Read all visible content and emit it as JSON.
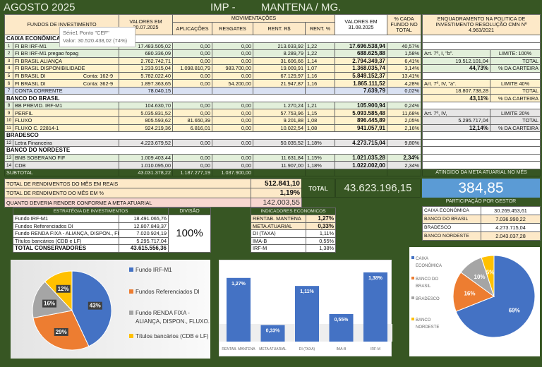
{
  "header": {
    "month": "AGOSTO 2025",
    "imp": "IMP -",
    "city": "MANTENA / MG."
  },
  "table": {
    "headers": {
      "funds": "FUNDOS DE INVESTIMENTO",
      "prev_values": "VALORES EM 30.07.2025",
      "movements": "MOVIMENTAÇÕES",
      "applications": "APLICAÇÕES",
      "redemptions": "RESGATES",
      "rent_rs": "RENT. R$",
      "rent_pct": "RENT. %",
      "curr_values": "VALORES EM 31.08.2025",
      "fund_pct": "% CADA FUNDO NO TOTAL",
      "framework": "ENQUADRAMENTO NA POLITICA DE INVESTIMENTO RESOLUÇÃO CMN Nº 4.963/2021"
    },
    "rows": [
      {
        "type": "section",
        "name": "CAIXA ECONÔMICA"
      },
      {
        "num": "1",
        "name": "FI BR IRF-M1",
        "prev": "17.483.505,02",
        "app": "0,00",
        "red": "0,00",
        "rs": "213.033,92",
        "pct": "1,22",
        "curr": "17.696.538,94",
        "share": "40,57%",
        "tone": "green"
      },
      {
        "num": "2",
        "name": "FI BR IRF-M1 pregao fopag",
        "prev": "680.336,09",
        "app": "0,00",
        "red": "0,00",
        "rs": "8.289,79",
        "pct": "1,22",
        "curr": "688.625,88",
        "share": "1,58%",
        "tone": "green",
        "right": [
          "Art. 7º, I, \"b\".",
          "LIMITE: 100%"
        ],
        "rtone": "green"
      },
      {
        "num": "3",
        "name": "FI BRASIL ALIANÇA",
        "prev": "2.762.742,71",
        "app": "0,00",
        "red": "0,00",
        "rs": "31.606,66",
        "pct": "1,14",
        "curr": "2.794.349,37",
        "share": "6,41%",
        "tone": "yellow",
        "right": [
          "19.512.101,04",
          "TOTAL"
        ],
        "rtone": "green"
      },
      {
        "num": "4",
        "name": "FI BRASIL DISPONIBILIDADE",
        "prev": "1.233.915,04",
        "app": "1.098.810,79",
        "red": "983.700,00",
        "rs": "19.009,91",
        "pct": "1,07",
        "curr": "1.368.035,74",
        "share": "3,14%",
        "tone": "yellow",
        "right": [
          "44,73%",
          "% DA CARTEIRA"
        ],
        "rtone": "green",
        "rbold": true
      },
      {
        "num": "5",
        "name": "FI BRASIL DI",
        "account": "Conta: 162-9",
        "prev": "5.782.022,40",
        "app": "0,00",
        "red": "0,00",
        "rs": "67.129,97",
        "pct": "1,16",
        "curr": "5.849.152,37",
        "share": "13,41%",
        "tone": "yellow"
      },
      {
        "num": "6",
        "name": "FI BRASIL DI",
        "account": "Conta: 362-9",
        "prev": "1.897.363,65",
        "app": "0,00",
        "red": "54.200,00",
        "rs": "21.947,87",
        "pct": "1,16",
        "curr": "1.865.111,52",
        "share": "4,28%",
        "tone": "yellow",
        "right": [
          "Art. 7º, IV, \"a\".",
          "LIMITE 40%"
        ],
        "rtone": "yellow"
      },
      {
        "num": "7",
        "name": "CONTA CORRENTE",
        "prev": "78.040,15",
        "app": "",
        "red": "",
        "rs": "",
        "pct": "",
        "curr": "7.639,79",
        "share": "0,02%",
        "tone": "blue",
        "right": [
          "18.807.738,28",
          "TOTAL"
        ],
        "rtone": "yellow"
      },
      {
        "type": "section",
        "name": "BANCO DO BRASIL",
        "right": [
          "43,11%",
          "% DA CARTEIRA"
        ],
        "rtone": "yellow",
        "rbold": true
      },
      {
        "num": "8",
        "name": "BB PREVID. IRF-M1",
        "prev": "104.630,70",
        "app": "0,00",
        "red": "0,00",
        "rs": "1.270,24",
        "pct": "1,21",
        "curr": "105.900,94",
        "share": "0,24%",
        "tone": "green"
      },
      {
        "num": "9",
        "name": "PERFIL",
        "prev": "5.035.831,52",
        "app": "0,00",
        "red": "0,00",
        "rs": "57.753,96",
        "pct": "1,15",
        "curr": "5.093.585,48",
        "share": "11,68%",
        "tone": "yellow",
        "right": [
          "Art. 7º, IV,",
          "LIMITE 20%"
        ],
        "rtone": "gray"
      },
      {
        "num": "10",
        "name": "FLUXO",
        "prev": "805.593,62",
        "app": "81.650,39",
        "red": "0,00",
        "rs": "9.201,88",
        "pct": "1,08",
        "curr": "896.445,89",
        "share": "2,05%",
        "tone": "yellow",
        "right": [
          "5.295.717,04",
          "TOTAL"
        ],
        "rtone": "gray"
      },
      {
        "num": "11",
        "name": "FLUXO  C. 22814-1",
        "prev": "924.219,36",
        "app": "6.816,01",
        "red": "0,00",
        "rs": "10.022,54",
        "pct": "1,08",
        "curr": "941.057,91",
        "share": "2,16%",
        "tone": "yellow",
        "right": [
          "12,14%",
          "% DA CARTEIRA"
        ],
        "rtone": "gray",
        "rbold": true
      },
      {
        "type": "section",
        "name": "BRADESCO"
      },
      {
        "num": "12",
        "name": "Letra Financeira",
        "prev": "4.223.679,52",
        "app": "0,00",
        "red": "0,00",
        "rs": "50.035,52",
        "pct": "1,18%",
        "curr": "4.273.715,04",
        "share": "9,80%",
        "tone": "gray"
      },
      {
        "type": "section",
        "name": "BANCO DO NORDESTE"
      },
      {
        "num": "13",
        "name": "BNB SOBERANO FIF",
        "prev": "1.009.403,44",
        "app": "0,00",
        "red": "0,00",
        "rs": "11.631,84",
        "pct": "1,15%",
        "curr": "1.021.035,28",
        "share": "2,34%",
        "tone": "green",
        "sharebold": true
      },
      {
        "num": "14",
        "name": "CDB",
        "prev": "1.010.095,00",
        "app": "0,00",
        "red": "0,00",
        "rs": "11.907,00",
        "pct": "1,18%",
        "curr": "1.022.002,00",
        "share": "2,34%",
        "tone": "gray"
      }
    ],
    "subtotal": {
      "label": "SUBTOTAL",
      "prev": "43.031.378,22",
      "app": "1.187.277,19",
      "red": "1.037.900,00"
    }
  },
  "tooltip": {
    "series": "Série1 Ponto \"CEF\"",
    "value": "Valor: 30.520.438,02 (74%)"
  },
  "totals": {
    "month_income_label": "TOTAL DE RENDIMENTOS DO MÊS EM REAIS",
    "month_income": "512.841,10",
    "month_pct_label": "TOTAL DE RENDIMENTO DO MÊS EM %",
    "month_pct": "1,19%",
    "target_label": "QUANTO DEVERIA RENDER CONFORME A META ATUARIAL",
    "target": "142.003,55",
    "total_label": "TOTAL",
    "total": "43.623.196,15"
  },
  "goal": {
    "label": "ATINGIDO DA META ATUARIAL NO MÊS",
    "value": "384,85"
  },
  "managers": {
    "title": "PARTICIPAÇÃO POR GESTOR",
    "rows": [
      {
        "name": "CAIXA ECONÔMICA",
        "value": "30.269.453,61"
      },
      {
        "name": "BANCO DO BRASIL",
        "value": "7.036.990,22"
      },
      {
        "name": "BRADESCO",
        "value": "4.273.715,04"
      },
      {
        "name": "BANCO NORDESTE",
        "value": "2.043.037,28"
      }
    ]
  },
  "strategy": {
    "title": "ESTRATÉGIA DE INVESTIMENTOS",
    "division_label": "DIVISÃO",
    "division": "100%",
    "rows": [
      {
        "name": "Fundo IRF-M1",
        "value": "18.491.065,76"
      },
      {
        "name": "Fundos Referenciados DI",
        "value": "12.807.849,37"
      },
      {
        "name": "Fundo RENDA FIXA -  ALIANÇA, DISPON., FLUXO.",
        "value": "7.020.924,19"
      },
      {
        "name": "Títulos bancários (CDB e LF)",
        "value": "5.295.717,04"
      }
    ],
    "total_label": "TOTAL CONSERVADORES",
    "total": "43.615.556,36"
  },
  "indicators": {
    "title": "INDICADORES ECONOMICOS",
    "rows": [
      {
        "name": "RENTAB.  MANTENA",
        "value": "1,27%",
        "hl": true
      },
      {
        "name": "META ATUARIAL",
        "value": "0,33%",
        "hl": true
      },
      {
        "name": "DI (TAXA)",
        "value": "1,11%"
      },
      {
        "name": "IMA-B",
        "value": "0,55%"
      },
      {
        "name": "IRF-M",
        "value": "1,38%"
      }
    ]
  },
  "chart_data": [
    {
      "type": "pie",
      "categories": [
        "Fundo IRF-M1",
        "Fundos Referenciados DI",
        "Fundo RENDA FIXA - ALIANÇA, DISPON., FLUXO.",
        "Títulos bancários (CDB e LF)"
      ],
      "values": [
        43,
        29,
        16,
        12
      ],
      "labels": [
        "43%",
        "29%",
        "16%",
        "12%"
      ],
      "colors": [
        "#4472c4",
        "#ed7d31",
        "#a5a5a5",
        "#ffc000"
      ],
      "legend": "right"
    },
    {
      "type": "bar",
      "categories": [
        "RENTAB. MANTENA",
        "META ATUARIAL",
        "DI (TAXA)",
        "IMA-B",
        "IRF-M"
      ],
      "values": [
        1.27,
        0.33,
        1.11,
        0.55,
        1.38
      ],
      "labels": [
        "1,27%",
        "0,33%",
        "1,11%",
        "0,55%",
        "1,38%"
      ],
      "color": "#4472c4",
      "ylim": [
        0,
        1.45
      ]
    },
    {
      "type": "pie",
      "categories": [
        "CAIXA ECONÔMICA",
        "BANCO DO BRASIL",
        "BRADESCO",
        "BANCO NORDESTE"
      ],
      "values": [
        69,
        16,
        10,
        5
      ],
      "labels": [
        "69%",
        "16%",
        "10%",
        "5%"
      ],
      "colors": [
        "#4472c4",
        "#ed7d31",
        "#a5a5a5",
        "#ffc000"
      ],
      "legend": "left"
    }
  ]
}
